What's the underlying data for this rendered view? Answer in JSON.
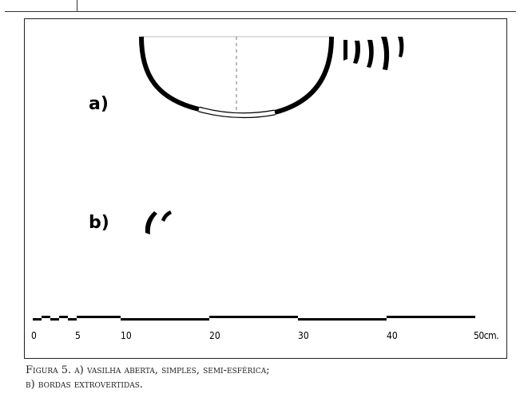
{
  "figure": {
    "label_a": "a)",
    "label_b": "b)",
    "scale": {
      "ticks": [
        "0",
        "5",
        "10",
        "20",
        "30",
        "40",
        "50cm."
      ]
    }
  },
  "caption": {
    "line1": "Figura 5. a) vasilha aberta, simples, semi-esférica;",
    "line2": "b) bordas extrovertidas."
  }
}
